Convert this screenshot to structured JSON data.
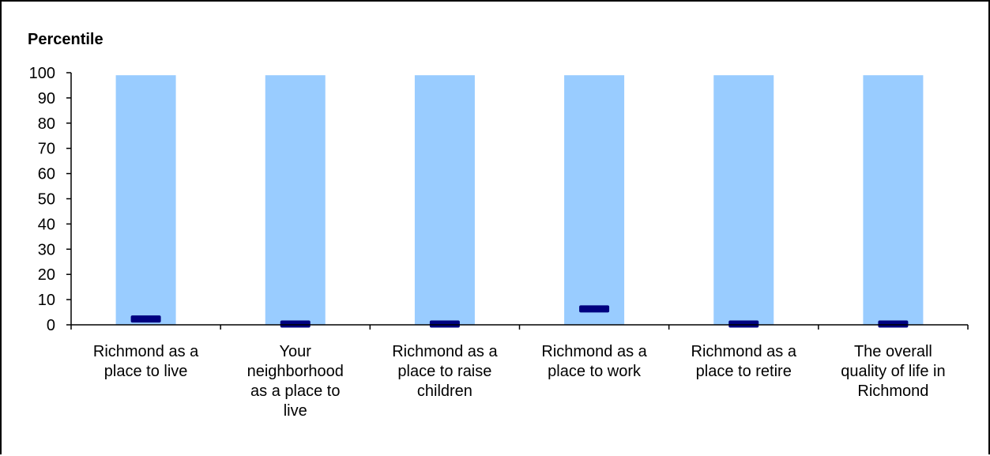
{
  "chart_data": {
    "type": "bar",
    "title": "Percentile",
    "xlabel": "",
    "ylabel": "",
    "ylim": [
      0,
      100
    ],
    "yticks": [
      0,
      10,
      20,
      30,
      40,
      50,
      60,
      70,
      80,
      90,
      100
    ],
    "grid": false,
    "legend": "none",
    "categories": [
      [
        "Richmond as a",
        "place to live"
      ],
      [
        "Your",
        "neighborhood",
        "as a place to",
        "live"
      ],
      [
        "Richmond as a",
        "place to raise",
        "children"
      ],
      [
        "Richmond as a",
        "place to work"
      ],
      [
        "Richmond as a",
        "place to retire"
      ],
      [
        "The overall",
        "quality of life in",
        "Richmond"
      ]
    ],
    "series": [
      {
        "type": "range-bar",
        "values": [
          99,
          99,
          99,
          99,
          99,
          99
        ],
        "color": "#99ccff"
      },
      {
        "type": "marker",
        "values": [
          2,
          0,
          0,
          6,
          0,
          0
        ],
        "color": "#000080"
      }
    ]
  }
}
